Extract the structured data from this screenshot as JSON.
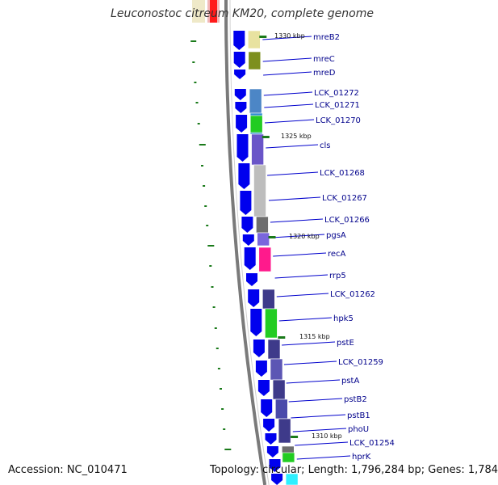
{
  "title": "Leuconostoc citreum KM20, complete genome",
  "accession": "Accession: NC_010471",
  "summary": "Topology: circular; Length: 1,796,284 bp; Genes: 1,784",
  "colors": {
    "forward_strand_arrow": "#0000ee",
    "backbone": "#7a7a7a",
    "gc_skew_dash": "#1a7a1a",
    "label_text": "#00008b",
    "leader_line": "#0000cc"
  },
  "genes": [
    {
      "name": "mreB2"
    },
    {
      "name": "mreC"
    },
    {
      "name": "mreD"
    },
    {
      "name": "LCK_01272"
    },
    {
      "name": "LCK_01271"
    },
    {
      "name": "LCK_01270"
    },
    {
      "name": "cls"
    },
    {
      "name": "LCK_01268"
    },
    {
      "name": "LCK_01267"
    },
    {
      "name": "LCK_01266"
    },
    {
      "name": "pgsA"
    },
    {
      "name": "recA"
    },
    {
      "name": "rrp5"
    },
    {
      "name": "LCK_01262"
    },
    {
      "name": "hpk5"
    },
    {
      "name": "pstE"
    },
    {
      "name": "LCK_01259"
    },
    {
      "name": "pstA"
    },
    {
      "name": "pstB2"
    },
    {
      "name": "pstB1"
    },
    {
      "name": "phoU"
    },
    {
      "name": "LCK_01254"
    },
    {
      "name": "hprK"
    }
  ],
  "ticks": [
    {
      "label": "1330 kbp"
    },
    {
      "label": "1325 kbp"
    },
    {
      "label": "1320 kbp"
    },
    {
      "label": "1315 kbp"
    },
    {
      "label": "1310 kbp"
    }
  ]
}
